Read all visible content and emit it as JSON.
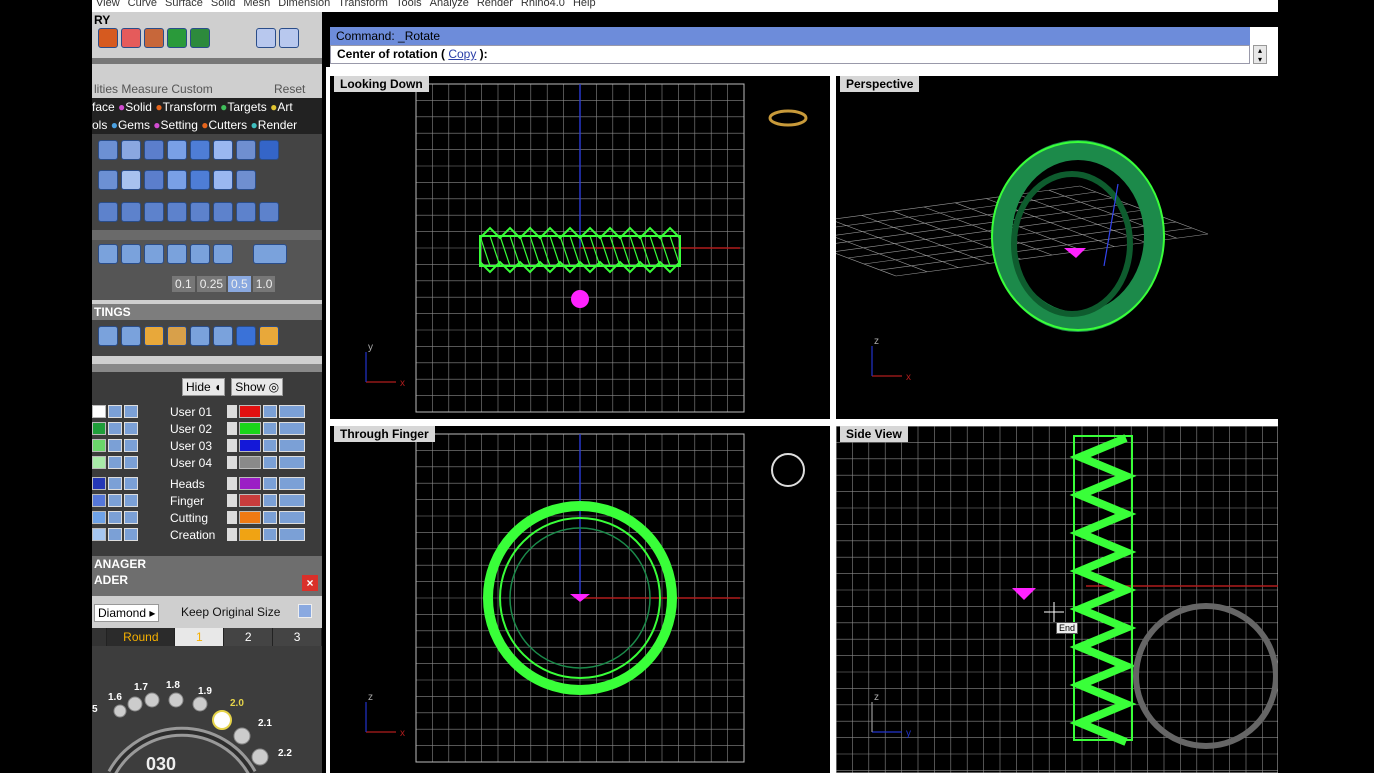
{
  "menu": [
    "View",
    "Curve",
    "Surface",
    "Solid",
    "Mesh",
    "Dimension",
    "Transform",
    "Tools",
    "Analyze",
    "Render",
    "Rhino4.0",
    "Help"
  ],
  "panel": {
    "history_title": "RY",
    "measure_tabs": [
      "lities",
      "Measure",
      "Custom",
      "Reset"
    ],
    "cat_row1": [
      "face",
      "Solid",
      "Transform",
      "Targets",
      "Art"
    ],
    "cat_row2": [
      "ols",
      "Gems",
      "Setting",
      "Cutters",
      "Render"
    ],
    "grid_values": [
      "0.1",
      "0.25",
      "0.5",
      "1.0"
    ],
    "settings_title": "TINGS",
    "hide_label": "Hide",
    "show_label": "Show",
    "layers_left": [
      {
        "color": "#ffffff"
      },
      {
        "color": "#1f9e3a"
      },
      {
        "color": "#6ad66a"
      },
      {
        "color": "#a9eaa9"
      },
      {
        "color": "#2437b5"
      },
      {
        "color": "#5577d9"
      },
      {
        "color": "#6fa3e8"
      },
      {
        "color": "#a7c7f0"
      }
    ],
    "layers_right": [
      {
        "name": "User 01",
        "color": "#e11010"
      },
      {
        "name": "User 02",
        "color": "#19d619"
      },
      {
        "name": "User 03",
        "color": "#1418d8"
      },
      {
        "name": "User 04",
        "color": "#8a8a8a"
      },
      {
        "name": "Heads",
        "color": "#9b1fc5"
      },
      {
        "name": "Finger",
        "color": "#c93c3c"
      },
      {
        "name": "Cutting",
        "color": "#f07a13"
      },
      {
        "name": "Creation",
        "color": "#f0a313"
      }
    ],
    "manager_title": "ANAGER",
    "loader_title": "ADER",
    "diamond_select": "Diamond",
    "keep_size_label": "Keep Original Size",
    "shape_tab": "Round",
    "tabs": [
      "1",
      "2",
      "3"
    ],
    "gem_sizes": [
      "5",
      "1.6",
      "1.7",
      "1.8",
      "1.9",
      "2.0",
      "2.1",
      "2.2"
    ],
    "angle_readout": "030"
  },
  "command": {
    "line1": "Command: _Rotate",
    "line2_prefix": "Center of rotation ( ",
    "line2_option": "Copy",
    "line2_suffix": " ):"
  },
  "viewports": {
    "top_left": "Looking Down",
    "top_right": "Perspective",
    "bottom_left": "Through Finger",
    "bottom_right": "Side View"
  },
  "snap_tooltip": "End",
  "axis_labels": {
    "x": "x",
    "y": "y",
    "z": "z"
  },
  "colors": {
    "grid": "#8a8a8a",
    "ring": "#39ff39",
    "gem": "#ff22ff",
    "axis_red": "#b01c1c",
    "axis_blue": "#2233cc"
  }
}
